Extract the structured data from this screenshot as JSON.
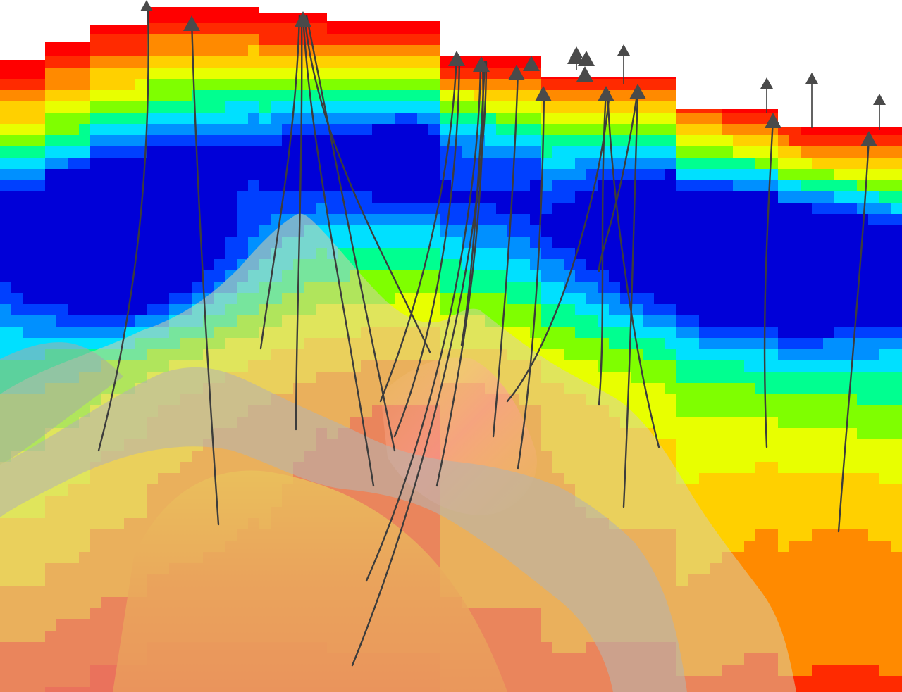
{
  "scene": {
    "kind": "3D geological model view",
    "background": "#ffffff",
    "colormap": [
      "#0000d8",
      "#0040ff",
      "#0090ff",
      "#00e0ff",
      "#00ff90",
      "#7fff00",
      "#e8ff00",
      "#ffd000",
      "#ff8a00",
      "#ff2a00",
      "#ff0000"
    ],
    "surfaces": [
      {
        "name": "salt-body",
        "color": "#f08a00"
      },
      {
        "name": "upper-horizon",
        "color": "#c8c4b4"
      },
      {
        "name": "lower-horizon",
        "color": "#a8a8a4"
      }
    ],
    "well_count": 24,
    "well_color": "#3c3c3c"
  }
}
